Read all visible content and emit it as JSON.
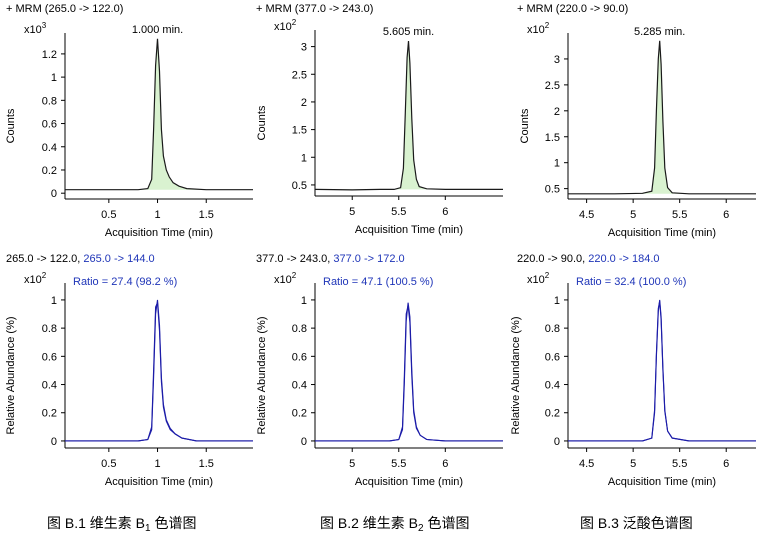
{
  "colors": {
    "peak_line": "#1a1a1a",
    "peak_fill": "#d9f2d0",
    "ion_line": "#1c1ca8",
    "ion_text": "#1f35b8",
    "axis": "#000000",
    "text": "#000000"
  },
  "chart_data": [
    {
      "id": "b1-mrm",
      "type": "line",
      "header": "+ MRM (265.0 -> 122.0)",
      "ylabel": "Counts",
      "exponent_base": "x10",
      "exponent": "3",
      "xlabel": "Acquisition Time (min)",
      "xlim": [
        0.05,
        1.98
      ],
      "ylim": [
        -0.05,
        1.38
      ],
      "xticks": [
        "0.5",
        "1",
        "1.5"
      ],
      "xtick_values": [
        0.5,
        1.0,
        1.5
      ],
      "yticks": [
        "0",
        "0.2",
        "0.4",
        "0.6",
        "0.8",
        "1",
        "1.2"
      ],
      "ytick_values": [
        0,
        0.2,
        0.4,
        0.6,
        0.8,
        1.0,
        1.2
      ],
      "peak_label": "1.000 min.",
      "peak_apex": [
        1.0,
        1.33
      ],
      "baseline": 0.03,
      "filled": true,
      "x": [
        0.05,
        0.3,
        0.6,
        0.8,
        0.9,
        0.94,
        0.96,
        0.98,
        1.0,
        1.02,
        1.04,
        1.06,
        1.09,
        1.12,
        1.16,
        1.22,
        1.3,
        1.5,
        1.98
      ],
      "y": [
        0.03,
        0.03,
        0.03,
        0.03,
        0.04,
        0.12,
        0.55,
        1.1,
        1.33,
        1.05,
        0.55,
        0.32,
        0.2,
        0.14,
        0.09,
        0.06,
        0.04,
        0.03,
        0.03
      ]
    },
    {
      "id": "b2-mrm",
      "type": "line",
      "header": "+ MRM (377.0 -> 243.0)",
      "ylabel": "Counts",
      "exponent_base": "x10",
      "exponent": "2",
      "xlabel": "Acquisition Time (min)",
      "xlim": [
        4.6,
        6.62
      ],
      "ylim": [
        0.3,
        3.3
      ],
      "xticks": [
        "5",
        "5.5",
        "6"
      ],
      "xtick_values": [
        5.0,
        5.5,
        6.0
      ],
      "yticks": [
        "0.5",
        "1",
        "1.5",
        "2",
        "2.5",
        "3"
      ],
      "ytick_values": [
        0.5,
        1.0,
        1.5,
        2.0,
        2.5,
        3.0
      ],
      "peak_label": "5.605 min.",
      "peak_apex": [
        5.605,
        3.1
      ],
      "baseline": 0.42,
      "filled": true,
      "x": [
        4.6,
        5.0,
        5.3,
        5.45,
        5.52,
        5.55,
        5.57,
        5.59,
        5.605,
        5.62,
        5.64,
        5.66,
        5.69,
        5.72,
        5.8,
        6.0,
        6.62
      ],
      "y": [
        0.42,
        0.41,
        0.42,
        0.42,
        0.45,
        0.8,
        1.8,
        2.8,
        3.1,
        2.7,
        1.7,
        0.95,
        0.6,
        0.47,
        0.43,
        0.42,
        0.42
      ]
    },
    {
      "id": "b3-mrm",
      "type": "line",
      "header": "+ MRM (220.0 -> 90.0)",
      "ylabel": "Counts",
      "exponent_base": "x10",
      "exponent": "2",
      "xlabel": "Acquisition Time (min)",
      "xlim": [
        4.3,
        6.32
      ],
      "ylim": [
        0.3,
        3.5
      ],
      "xticks": [
        "4.5",
        "5",
        "5.5",
        "6"
      ],
      "xtick_values": [
        4.5,
        5.0,
        5.5,
        6.0
      ],
      "yticks": [
        "0.5",
        "1",
        "1.5",
        "2",
        "2.5",
        "3"
      ],
      "ytick_values": [
        0.5,
        1.0,
        1.5,
        2.0,
        2.5,
        3.0
      ],
      "peak_label": "5.285 min.",
      "peak_apex": [
        5.285,
        3.35
      ],
      "baseline": 0.4,
      "filled": true,
      "x": [
        4.3,
        4.8,
        5.1,
        5.2,
        5.23,
        5.25,
        5.27,
        5.285,
        5.3,
        5.32,
        5.34,
        5.37,
        5.42,
        5.6,
        6.32
      ],
      "y": [
        0.4,
        0.4,
        0.41,
        0.45,
        0.9,
        2.0,
        3.0,
        3.35,
        2.9,
        1.8,
        0.9,
        0.52,
        0.42,
        0.4,
        0.4
      ]
    },
    {
      "id": "b1-ratio",
      "type": "line",
      "header": "265.0 -> 122.0, ",
      "header_ion": "265.0 -> 144.0",
      "ylabel": "Relative Abundance (%)",
      "exponent_base": "x10",
      "exponent": "2",
      "ratio_label": "Ratio = 27.4 (98.2 %)",
      "xlabel": "Acquisition Time (min)",
      "xlim": [
        0.05,
        1.98
      ],
      "ylim": [
        -0.05,
        1.12
      ],
      "xticks": [
        "0.5",
        "1",
        "1.5"
      ],
      "xtick_values": [
        0.5,
        1.0,
        1.5
      ],
      "yticks": [
        "0",
        "0.2",
        "0.4",
        "0.6",
        "0.8",
        "1"
      ],
      "ytick_values": [
        0,
        0.2,
        0.4,
        0.6,
        0.8,
        1.0
      ],
      "filled": false,
      "series": [
        {
          "x": [
            0.05,
            0.4,
            0.8,
            0.9,
            0.94,
            0.96,
            0.98,
            1.0,
            1.02,
            1.04,
            1.06,
            1.09,
            1.13,
            1.18,
            1.25,
            1.4,
            1.98
          ],
          "y": [
            0.0,
            0.0,
            0.0,
            0.01,
            0.08,
            0.45,
            0.9,
            1.0,
            0.82,
            0.45,
            0.26,
            0.15,
            0.09,
            0.05,
            0.02,
            0.0,
            0.0
          ]
        },
        {
          "x": [
            0.05,
            0.4,
            0.8,
            0.9,
            0.94,
            0.96,
            0.98,
            1.0,
            1.02,
            1.04,
            1.06,
            1.09,
            1.13,
            1.18,
            1.25,
            1.4,
            1.98
          ],
          "y": [
            0.0,
            0.0,
            0.0,
            0.01,
            0.1,
            0.5,
            0.95,
            0.98,
            0.78,
            0.42,
            0.24,
            0.14,
            0.08,
            0.05,
            0.02,
            0.0,
            0.0
          ]
        }
      ]
    },
    {
      "id": "b2-ratio",
      "type": "line",
      "header": "377.0 -> 243.0, ",
      "header_ion": "377.0 -> 172.0",
      "ylabel": "Relative Abundance (%)",
      "exponent_base": "x10",
      "exponent": "2",
      "ratio_label": "Ratio = 47.1 (100.5 %)",
      "xlabel": "Acquisition Time (min)",
      "xlim": [
        4.6,
        6.62
      ],
      "ylim": [
        -0.05,
        1.12
      ],
      "xticks": [
        "5",
        "5.5",
        "6"
      ],
      "xtick_values": [
        5.0,
        5.5,
        6.0
      ],
      "yticks": [
        "0",
        "0.2",
        "0.4",
        "0.6",
        "0.8",
        "1"
      ],
      "ytick_values": [
        0,
        0.2,
        0.4,
        0.6,
        0.8,
        1.0
      ],
      "filled": false,
      "series": [
        {
          "x": [
            4.6,
            5.0,
            5.4,
            5.5,
            5.54,
            5.56,
            5.58,
            5.6,
            5.62,
            5.64,
            5.66,
            5.69,
            5.73,
            5.8,
            6.0,
            6.62
          ],
          "y": [
            0.0,
            0.0,
            0.0,
            0.01,
            0.08,
            0.4,
            0.85,
            0.98,
            0.88,
            0.5,
            0.22,
            0.1,
            0.04,
            0.01,
            0.0,
            0.0
          ]
        },
        {
          "x": [
            4.6,
            5.0,
            5.4,
            5.5,
            5.54,
            5.56,
            5.58,
            5.6,
            5.62,
            5.64,
            5.66,
            5.69,
            5.73,
            5.8,
            6.0,
            6.62
          ],
          "y": [
            0.0,
            0.0,
            0.0,
            0.01,
            0.1,
            0.45,
            0.9,
            0.96,
            0.84,
            0.46,
            0.2,
            0.09,
            0.04,
            0.01,
            0.0,
            0.0
          ]
        }
      ]
    },
    {
      "id": "b3-ratio",
      "type": "line",
      "header": "220.0 -> 90.0, ",
      "header_ion": "220.0 -> 184.0",
      "ylabel": "Relative Abundance (%)",
      "exponent_base": "x10",
      "exponent": "2",
      "ratio_label": "Ratio = 32.4 (100.0 %)",
      "xlabel": "Acquisition Time (min)",
      "xlim": [
        4.3,
        6.32
      ],
      "ylim": [
        -0.05,
        1.12
      ],
      "xticks": [
        "4.5",
        "5",
        "5.5",
        "6"
      ],
      "xtick_values": [
        4.5,
        5.0,
        5.5,
        6.0
      ],
      "yticks": [
        "0",
        "0.2",
        "0.4",
        "0.6",
        "0.8",
        "1"
      ],
      "ytick_values": [
        0,
        0.2,
        0.4,
        0.6,
        0.8,
        1.0
      ],
      "filled": false,
      "series": [
        {
          "x": [
            4.3,
            4.8,
            5.1,
            5.2,
            5.23,
            5.25,
            5.27,
            5.285,
            5.3,
            5.32,
            5.34,
            5.37,
            5.42,
            5.6,
            6.32
          ],
          "y": [
            0.0,
            0.0,
            0.0,
            0.02,
            0.2,
            0.6,
            0.92,
            1.0,
            0.88,
            0.52,
            0.22,
            0.07,
            0.02,
            0.0,
            0.0
          ]
        },
        {
          "x": [
            4.3,
            4.8,
            5.1,
            5.2,
            5.23,
            5.25,
            5.27,
            5.285,
            5.3,
            5.32,
            5.34,
            5.37,
            5.42,
            5.6,
            6.32
          ],
          "y": [
            0.0,
            0.0,
            0.0,
            0.02,
            0.22,
            0.62,
            0.94,
            0.99,
            0.86,
            0.5,
            0.21,
            0.07,
            0.02,
            0.0,
            0.0
          ]
        }
      ]
    }
  ],
  "captions": [
    {
      "prefix": "图  B.1  维生素 B",
      "sub": "1",
      "suffix": " 色谱图"
    },
    {
      "prefix": "图  B.2 维生素 B",
      "sub": "2",
      "suffix": " 色谱图"
    },
    {
      "prefix": "图  B.3 泛酸色谱图",
      "sub": "",
      "suffix": ""
    }
  ]
}
